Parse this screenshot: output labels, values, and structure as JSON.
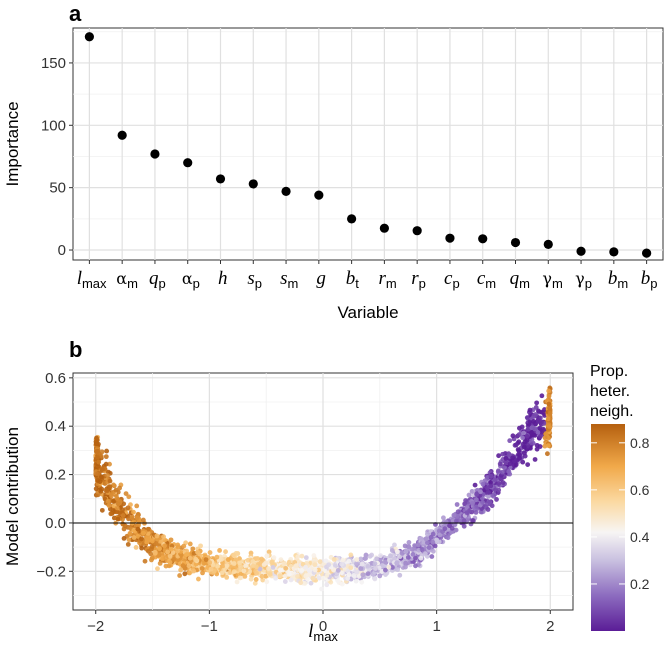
{
  "chart_data": [
    {
      "panel": "a",
      "type": "scatter",
      "xlabel": "Variable",
      "ylabel": "Importance",
      "ylim": [
        -8,
        178
      ],
      "yticks": [
        0,
        50,
        100,
        150
      ],
      "point_color": "#000000",
      "categories": [
        {
          "main": "l",
          "sub": "max",
          "greek": false
        },
        {
          "main": "α",
          "sub": "m",
          "greek": true
        },
        {
          "main": "q",
          "sub": "p",
          "greek": false
        },
        {
          "main": "α",
          "sub": "p",
          "greek": true
        },
        {
          "main": "h",
          "sub": "",
          "greek": false
        },
        {
          "main": "s",
          "sub": "p",
          "greek": false
        },
        {
          "main": "s",
          "sub": "m",
          "greek": false
        },
        {
          "main": "g",
          "sub": "",
          "greek": false
        },
        {
          "main": "b",
          "sub": "t",
          "greek": false
        },
        {
          "main": "r",
          "sub": "m",
          "greek": false
        },
        {
          "main": "r",
          "sub": "p",
          "greek": false
        },
        {
          "main": "c",
          "sub": "p",
          "greek": false
        },
        {
          "main": "c",
          "sub": "m",
          "greek": false
        },
        {
          "main": "q",
          "sub": "m",
          "greek": false
        },
        {
          "main": "γ",
          "sub": "m",
          "greek": true
        },
        {
          "main": "γ",
          "sub": "p",
          "greek": true
        },
        {
          "main": "b",
          "sub": "m",
          "greek": false
        },
        {
          "main": "b",
          "sub": "p",
          "greek": false
        }
      ],
      "values": [
        171,
        92,
        77,
        70,
        57,
        53,
        47,
        44,
        25,
        17.5,
        15.5,
        9.5,
        9,
        6,
        4.5,
        -1,
        -1.5,
        -2.5
      ]
    },
    {
      "panel": "b",
      "type": "scatter",
      "xlabel": {
        "main": "l",
        "sub": "max"
      },
      "ylabel": "Model contribution",
      "xlim": [
        -2.2,
        2.2
      ],
      "ylim": [
        -0.36,
        0.62
      ],
      "xticks": [
        -2,
        -1,
        0,
        1,
        2
      ],
      "yticks": [
        -0.2,
        0.0,
        0.2,
        0.4,
        0.6
      ],
      "ytick_labels": [
        "−0.2",
        "0.0",
        "0.2",
        "0.4",
        "0.6"
      ],
      "xtick_labels": [
        "−2",
        "−1",
        "0",
        "1",
        "2"
      ],
      "reference_line_y": 0,
      "n_points_approx": 2500,
      "trend_x": [
        -2.0,
        -1.8,
        -1.6,
        -1.4,
        -1.2,
        -1.0,
        -0.5,
        0.0,
        0.5,
        0.8,
        1.0,
        1.2,
        1.4,
        1.6,
        1.8,
        2.0
      ],
      "trend_y": [
        0.26,
        0.06,
        -0.06,
        -0.12,
        -0.15,
        -0.17,
        -0.19,
        -0.2,
        -0.18,
        -0.13,
        -0.06,
        0.02,
        0.11,
        0.22,
        0.36,
        0.44
      ],
      "legend": {
        "title_lines": [
          "Prop.",
          "heter.",
          "neigh."
        ],
        "range": [
          0.0,
          0.88
        ],
        "ticks": [
          0.2,
          0.4,
          0.6,
          0.8
        ],
        "tick_labels": [
          "0.2",
          "0.4",
          "0.6",
          "0.8"
        ],
        "colormap": [
          {
            "v": 0.0,
            "c": "#5b1d97"
          },
          {
            "v": 0.15,
            "c": "#8c6bbf"
          },
          {
            "v": 0.3,
            "c": "#c9c0e0"
          },
          {
            "v": 0.42,
            "c": "#f7f5f4"
          },
          {
            "v": 0.55,
            "c": "#fbd9a2"
          },
          {
            "v": 0.7,
            "c": "#f1a94a"
          },
          {
            "v": 0.88,
            "c": "#b5600f"
          }
        ]
      }
    }
  ],
  "panel_labels": {
    "a": "a",
    "b": "b"
  }
}
